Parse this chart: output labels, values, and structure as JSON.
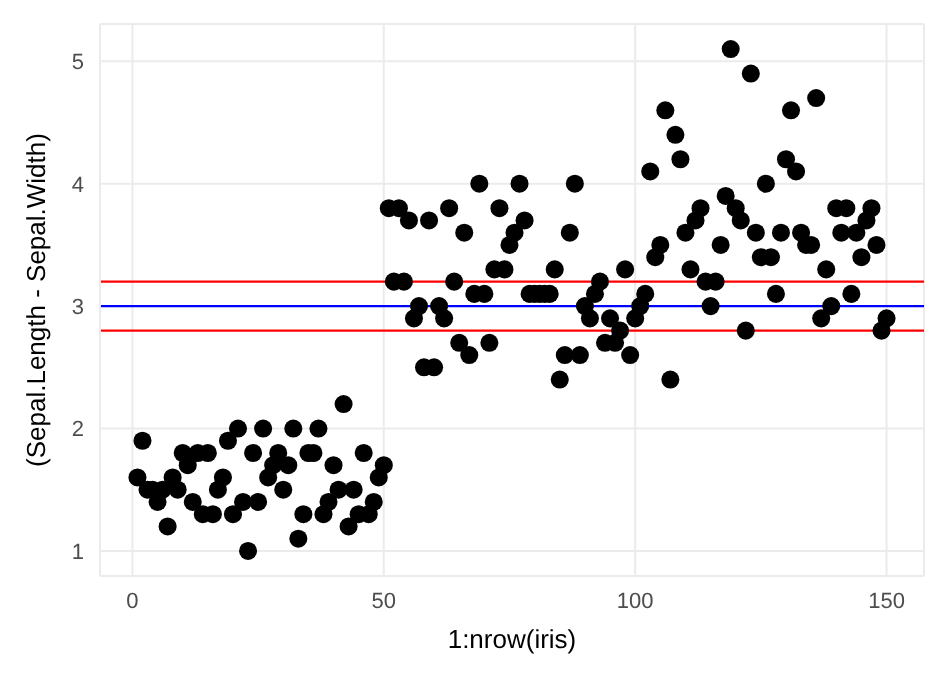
{
  "chart_data": {
    "type": "scatter",
    "xlabel": "1:nrow(iris)",
    "ylabel": "(Sepal.Length - Sepal.Width)",
    "x": [
      1,
      2,
      3,
      4,
      5,
      6,
      7,
      8,
      9,
      10,
      11,
      12,
      13,
      14,
      15,
      16,
      17,
      18,
      19,
      20,
      21,
      22,
      23,
      24,
      25,
      26,
      27,
      28,
      29,
      30,
      31,
      32,
      33,
      34,
      35,
      36,
      37,
      38,
      39,
      40,
      41,
      42,
      43,
      44,
      45,
      46,
      47,
      48,
      49,
      50,
      51,
      52,
      53,
      54,
      55,
      56,
      57,
      58,
      59,
      60,
      61,
      62,
      63,
      64,
      65,
      66,
      67,
      68,
      69,
      70,
      71,
      72,
      73,
      74,
      75,
      76,
      77,
      78,
      79,
      80,
      81,
      82,
      83,
      84,
      85,
      86,
      87,
      88,
      89,
      90,
      91,
      92,
      93,
      94,
      95,
      96,
      97,
      98,
      99,
      100,
      101,
      102,
      103,
      104,
      105,
      106,
      107,
      108,
      109,
      110,
      111,
      112,
      113,
      114,
      115,
      116,
      117,
      118,
      119,
      120,
      121,
      122,
      123,
      124,
      125,
      126,
      127,
      128,
      129,
      130,
      131,
      132,
      133,
      134,
      135,
      136,
      137,
      138,
      139,
      140,
      141,
      142,
      143,
      144,
      145,
      146,
      147,
      148,
      149,
      150
    ],
    "values": [
      1.6,
      1.9,
      1.5,
      1.5,
      1.4,
      1.5,
      1.2,
      1.6,
      1.5,
      1.8,
      1.7,
      1.4,
      1.8,
      1.3,
      1.8,
      1.3,
      1.5,
      1.6,
      1.9,
      1.3,
      2.0,
      1.4,
      1.0,
      1.8,
      1.4,
      2.0,
      1.6,
      1.7,
      1.8,
      1.5,
      1.7,
      2.0,
      1.1,
      1.3,
      1.8,
      1.8,
      2.0,
      1.3,
      1.4,
      1.7,
      1.5,
      2.2,
      1.2,
      1.5,
      1.3,
      1.8,
      1.3,
      1.4,
      1.6,
      1.7,
      3.8,
      3.2,
      3.8,
      3.2,
      3.7,
      2.9,
      3.0,
      2.5,
      3.7,
      2.5,
      3.0,
      2.9,
      3.8,
      3.2,
      2.7,
      3.6,
      2.6,
      3.1,
      4.0,
      3.1,
      2.7,
      3.3,
      3.8,
      3.3,
      3.5,
      3.6,
      4.0,
      3.7,
      3.1,
      3.1,
      3.1,
      3.1,
      3.1,
      3.3,
      2.4,
      2.6,
      3.6,
      4.0,
      2.6,
      3.0,
      2.9,
      3.1,
      3.2,
      2.7,
      2.9,
      2.7,
      2.8,
      3.3,
      2.6,
      2.9,
      3.0,
      3.1,
      4.1,
      3.4,
      3.5,
      4.6,
      2.4,
      4.4,
      4.2,
      3.6,
      3.3,
      3.7,
      3.8,
      3.2,
      3.0,
      3.2,
      3.5,
      3.9,
      5.1,
      3.8,
      3.7,
      2.8,
      4.9,
      3.6,
      3.4,
      4.0,
      3.4,
      3.1,
      3.6,
      4.2,
      4.6,
      4.1,
      3.6,
      3.5,
      3.5,
      4.7,
      2.9,
      3.3,
      3.0,
      3.8,
      3.6,
      3.8,
      3.1,
      3.6,
      3.4,
      3.7,
      3.8,
      3.5,
      2.8,
      2.9
    ],
    "color": "#000000",
    "marker": "circle",
    "xlim": [
      -6.45,
      157.45
    ],
    "xticks": [
      0,
      50,
      100,
      150
    ],
    "ylim": [
      0.795,
      5.305
    ],
    "yticks": [
      1,
      2,
      3,
      4,
      5
    ],
    "grid": true,
    "ref_lines": [
      {
        "axis": "y",
        "value": 3.0,
        "color": "#0000ff"
      },
      {
        "axis": "y",
        "value": 2.8,
        "color": "#ff0000"
      },
      {
        "axis": "y",
        "value": 3.2,
        "color": "#ff0000"
      }
    ]
  }
}
